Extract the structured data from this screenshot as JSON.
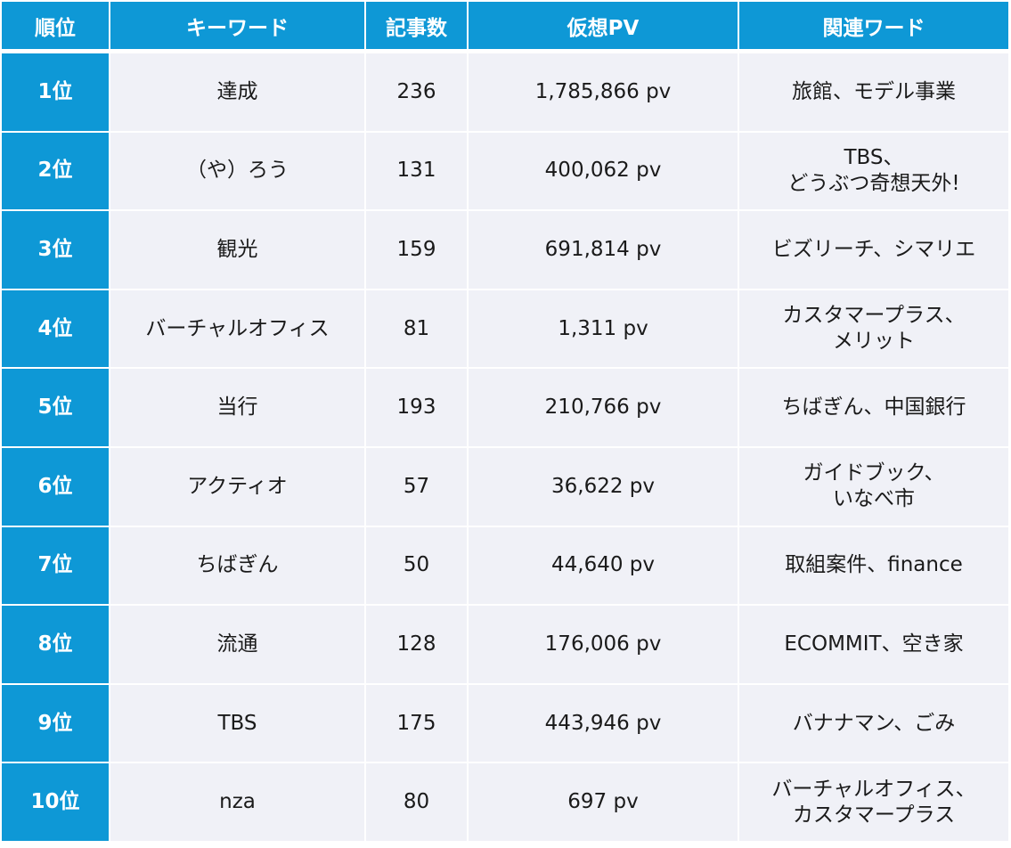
{
  "table": {
    "headers": [
      "順位",
      "キーワード",
      "記事数",
      "仮想PV",
      "関連ワード"
    ],
    "rows": [
      {
        "rank": "1位",
        "keyword": "達成",
        "articles": "236",
        "pv": "1,785,866 pv",
        "related": "旅館、モデル事業"
      },
      {
        "rank": "2位",
        "keyword": "（や）ろう",
        "articles": "131",
        "pv": "400,062 pv",
        "related": "TBS、\nどうぶつ奇想天外!"
      },
      {
        "rank": "3位",
        "keyword": "観光",
        "articles": "159",
        "pv": "691,814 pv",
        "related": "ビズリーチ、シマリエ"
      },
      {
        "rank": "4位",
        "keyword": "バーチャルオフィス",
        "articles": "81",
        "pv": "1,311 pv",
        "related": "カスタマープラス、\nメリット"
      },
      {
        "rank": "5位",
        "keyword": "当行",
        "articles": "193",
        "pv": "210,766 pv",
        "related": "ちばぎん、中国銀行"
      },
      {
        "rank": "6位",
        "keyword": "アクティオ",
        "articles": "57",
        "pv": "36,622 pv",
        "related": "ガイドブック、\nいなべ市"
      },
      {
        "rank": "7位",
        "keyword": "ちばぎん",
        "articles": "50",
        "pv": "44,640 pv",
        "related": "取組案件、finance"
      },
      {
        "rank": "8位",
        "keyword": "流通",
        "articles": "128",
        "pv": "176,006 pv",
        "related": "ECOMMIT、空き家"
      },
      {
        "rank": "9位",
        "keyword": "TBS",
        "articles": "175",
        "pv": "443,946 pv",
        "related": "バナナマン、ごみ"
      },
      {
        "rank": "10位",
        "keyword": "nza",
        "articles": "80",
        "pv": "697 pv",
        "related": "バーチャルオフィス、\nカスタマープラス"
      }
    ]
  },
  "colors": {
    "header_bg": "#0e98d6",
    "rank_bg": "#0e98d6",
    "row_bg": "#f0f1f7",
    "header_text": "#ffffff",
    "body_text": "#1a1a1a"
  }
}
